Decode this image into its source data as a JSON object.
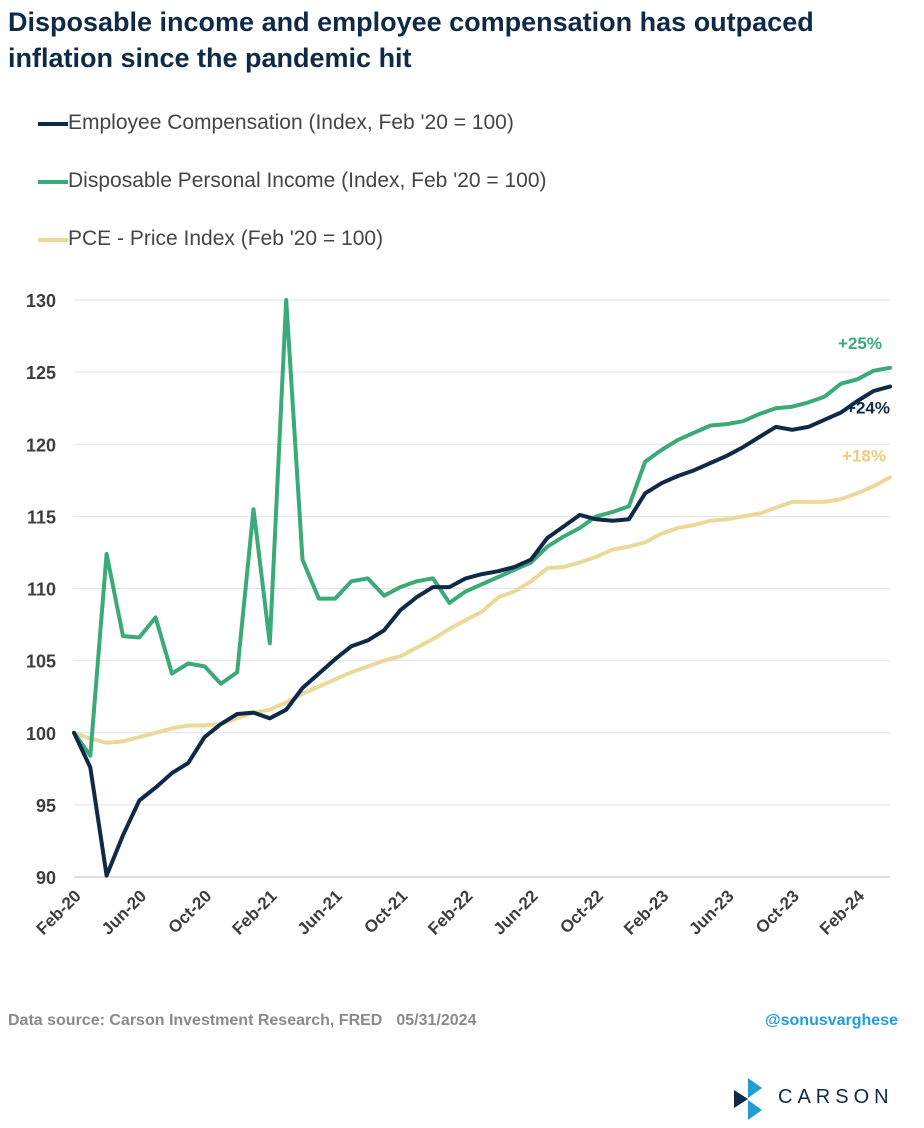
{
  "title": "Disposable income and employee compensation has outpaced inflation since the pandemic hit",
  "legend": [
    {
      "label": "Employee Compensation (Index, Feb '20 = 100)",
      "color": "#0e2a47"
    },
    {
      "label": "Disposable Personal Income (Index, Feb '20 = 100)",
      "color": "#3aaa78"
    },
    {
      "label": "PCE - Price Index (Feb '20 = 100)",
      "color": "#ecd99a"
    }
  ],
  "chart_data": {
    "type": "line",
    "ylim": [
      90,
      130
    ],
    "yticks": [
      90,
      95,
      100,
      105,
      110,
      115,
      120,
      125,
      130
    ],
    "x_tick_labels": [
      "Feb-20",
      "Jun-20",
      "Oct-20",
      "Feb-21",
      "Jun-21",
      "Oct-21",
      "Feb-22",
      "Jun-22",
      "Oct-22",
      "Feb-23",
      "Jun-23",
      "Oct-23",
      "Feb-24"
    ],
    "x_start": "2020-02",
    "x_end": "2024-04",
    "grid": "horizontal",
    "series": [
      {
        "name": "Employee Compensation (Index, Feb '20 = 100)",
        "color": "#0e2a47",
        "end_label": "+24%",
        "values": [
          100.0,
          97.6,
          90.1,
          92.9,
          95.3,
          96.2,
          97.2,
          97.9,
          99.7,
          100.6,
          101.3,
          101.4,
          101.0,
          101.6,
          103.1,
          104.1,
          105.1,
          106.0,
          106.4,
          107.1,
          108.5,
          109.4,
          110.1,
          110.1,
          110.7,
          111.0,
          111.2,
          111.5,
          112.0,
          113.5,
          114.3,
          115.1,
          114.8,
          114.7,
          114.8,
          116.6,
          117.3,
          117.8,
          118.2,
          118.7,
          119.2,
          119.8,
          120.5,
          121.2,
          121.0,
          121.2,
          121.7,
          122.2,
          123.0,
          123.7,
          124.0
        ]
      },
      {
        "name": "Disposable Personal Income (Index, Feb '20 = 100)",
        "color": "#3aaa78",
        "end_label": "+25%",
        "values": [
          100.0,
          98.4,
          112.4,
          106.7,
          106.6,
          108.0,
          104.1,
          104.8,
          104.6,
          103.4,
          104.2,
          115.5,
          106.2,
          130.0,
          112.0,
          109.3,
          109.3,
          110.5,
          110.7,
          109.5,
          110.1,
          110.5,
          110.7,
          109.0,
          109.8,
          110.3,
          110.8,
          111.3,
          111.8,
          112.9,
          113.6,
          114.2,
          115.0,
          115.3,
          115.7,
          118.8,
          119.6,
          120.3,
          120.8,
          121.3,
          121.4,
          121.6,
          122.1,
          122.5,
          122.6,
          122.9,
          123.3,
          124.2,
          124.5,
          125.1,
          125.3
        ]
      },
      {
        "name": "PCE - Price Index (Feb '20 = 100)",
        "color": "#ecd99a",
        "end_label": "+18%",
        "values": [
          100.0,
          99.6,
          99.3,
          99.4,
          99.7,
          100.0,
          100.3,
          100.5,
          100.5,
          100.6,
          101.0,
          101.4,
          101.6,
          102.1,
          102.7,
          103.2,
          103.7,
          104.2,
          104.6,
          105.0,
          105.3,
          105.9,
          106.5,
          107.2,
          107.8,
          108.4,
          109.4,
          109.8,
          110.5,
          111.4,
          111.5,
          111.8,
          112.2,
          112.7,
          112.9,
          113.2,
          113.8,
          114.2,
          114.4,
          114.7,
          114.8,
          115.0,
          115.2,
          115.6,
          116.0,
          116.0,
          116.0,
          116.2,
          116.6,
          117.1,
          117.7
        ]
      }
    ]
  },
  "footer": {
    "source": "Data source: Carson Investment Research, FRED",
    "date": "05/31/2024",
    "handle": "@sonusvarghese",
    "logo_text": "CARSON",
    "logo_color": "#1f9fd6"
  }
}
